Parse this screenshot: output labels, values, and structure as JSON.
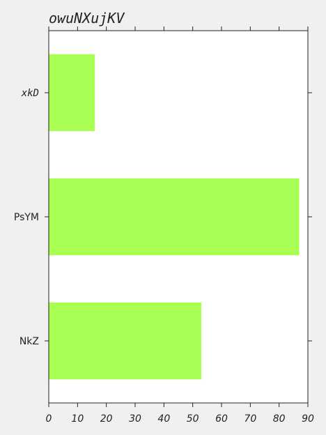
{
  "chart_data": {
    "type": "bar",
    "orientation": "horizontal",
    "title": "owuNXujKV",
    "xlabel": "",
    "ylabel": "",
    "categories": [
      "xkD",
      "PsYM",
      "NkZ"
    ],
    "values": [
      16,
      87,
      53
    ],
    "xlim": [
      0,
      90
    ],
    "xticks": [
      0,
      10,
      20,
      30,
      40,
      50,
      60,
      70,
      80,
      90
    ],
    "grid": false,
    "bar_color": "#aaff55"
  }
}
